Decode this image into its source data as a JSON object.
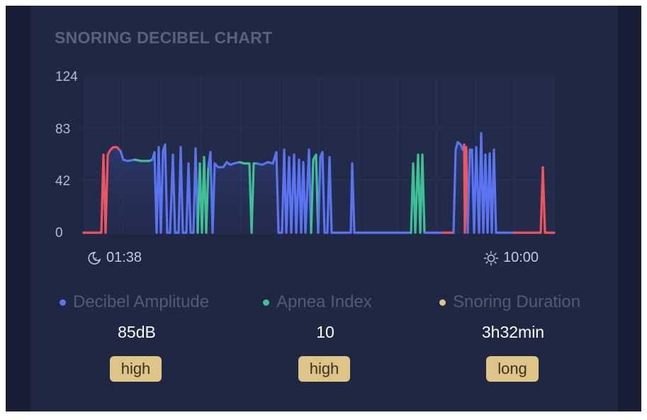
{
  "title": "SNORING DECIBEL CHART",
  "colors": {
    "decibel": "#5a73f0",
    "apnea": "#3fbf94",
    "snoring": "#f0545e",
    "badge": "#dcc587",
    "background": "#1f2742"
  },
  "chart_data": {
    "type": "line",
    "y_ticks": [
      "124",
      "83",
      "42",
      "0"
    ],
    "ylim": [
      0,
      124
    ],
    "x_start_label": "01:38",
    "x_end_label": "10:00",
    "x_start_icon": "moon-sleep-icon",
    "x_end_icon": "sun-icon",
    "legend_position": "below",
    "series": [
      {
        "name": "Decibel Amplitude",
        "color": "#5a73f0"
      },
      {
        "name": "Apnea Index",
        "color": "#3fbf94"
      },
      {
        "name": "Snoring Duration",
        "color": "#f0545e"
      }
    ]
  },
  "stats": [
    {
      "label": "Decibel Amplitude",
      "value": "85dB",
      "badge": "high"
    },
    {
      "label": "Apnea Index",
      "value": "10",
      "badge": "high"
    },
    {
      "label": "Snoring Duration",
      "value": "3h32min",
      "badge": "long"
    }
  ]
}
